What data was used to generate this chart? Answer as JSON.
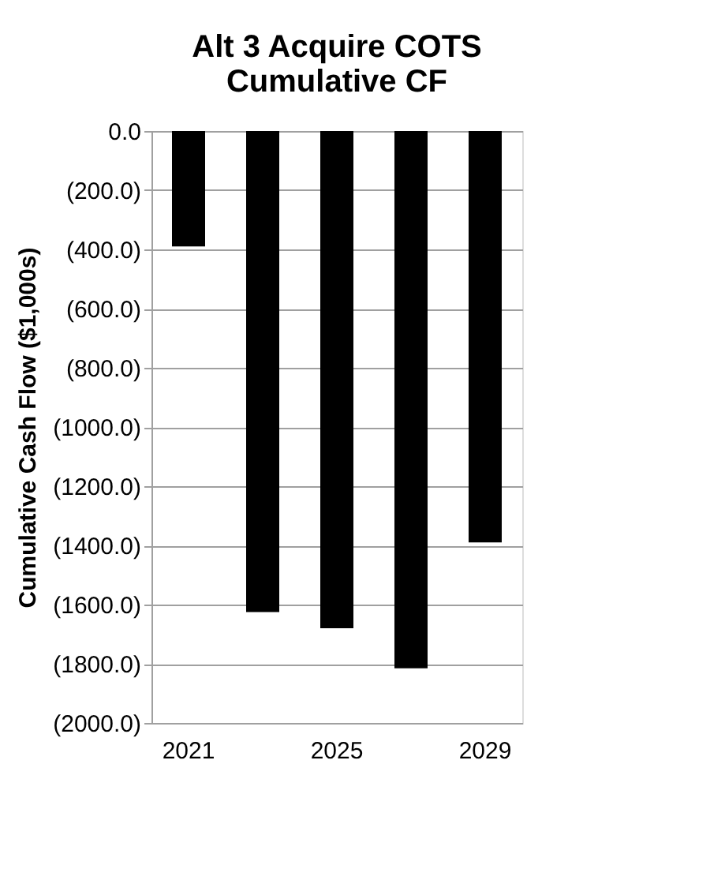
{
  "chart_data": {
    "type": "bar",
    "title": [
      "Alt 3 Acquire COTS",
      "Cumulative CF"
    ],
    "ylabel": "Cumulative Cash Flow ($1,000s)",
    "categories": [
      "2021",
      null,
      "2025",
      null,
      "2029"
    ],
    "values": [
      -390,
      -1625,
      -1680,
      -1815,
      -1390
    ],
    "color": "#000000",
    "ylim": [
      -2000,
      0
    ],
    "yticks": [
      {
        "value": 0,
        "label": "0.0"
      },
      {
        "value": -200,
        "label": "(200.0)"
      },
      {
        "value": -400,
        "label": "(400.0)"
      },
      {
        "value": -600,
        "label": "(600.0)"
      },
      {
        "value": -800,
        "label": "(800.0)"
      },
      {
        "value": -1000,
        "label": "(1000.0)"
      },
      {
        "value": -1200,
        "label": "(1200.0)"
      },
      {
        "value": -1400,
        "label": "(1400.0)"
      },
      {
        "value": -1600,
        "label": "(1600.0)"
      },
      {
        "value": -1800,
        "label": "(1800.0)"
      },
      {
        "value": -2000,
        "label": "(2000.0)"
      }
    ],
    "grid": "y"
  }
}
